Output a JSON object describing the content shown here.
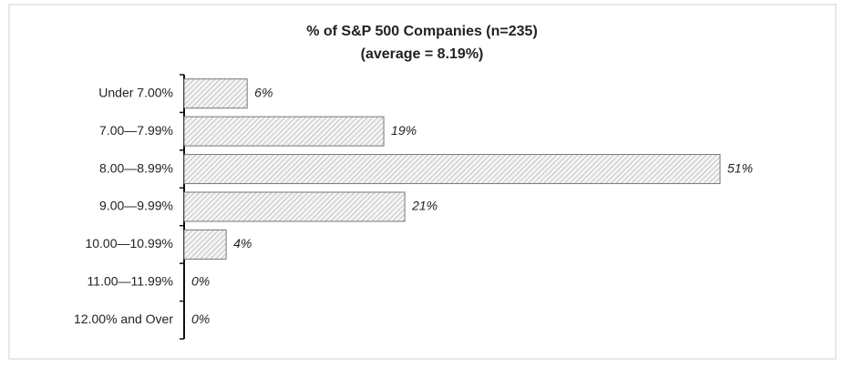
{
  "chart_data": {
    "type": "bar",
    "orientation": "horizontal",
    "title": "% of S&P 500 Companies (n=235)",
    "subtitle": "(average = 8.19%)",
    "categories": [
      "Under 7.00%",
      "7.00—7.99%",
      "8.00—8.99%",
      "9.00—9.99%",
      "10.00—10.99%",
      "11.00—11.99%",
      "12.00% and Over"
    ],
    "values": [
      6,
      19,
      51,
      21,
      4,
      0,
      0
    ],
    "value_labels": [
      "6%",
      "19%",
      "51%",
      "21%",
      "4%",
      "0%",
      "0%"
    ],
    "color": "#777777"
  }
}
